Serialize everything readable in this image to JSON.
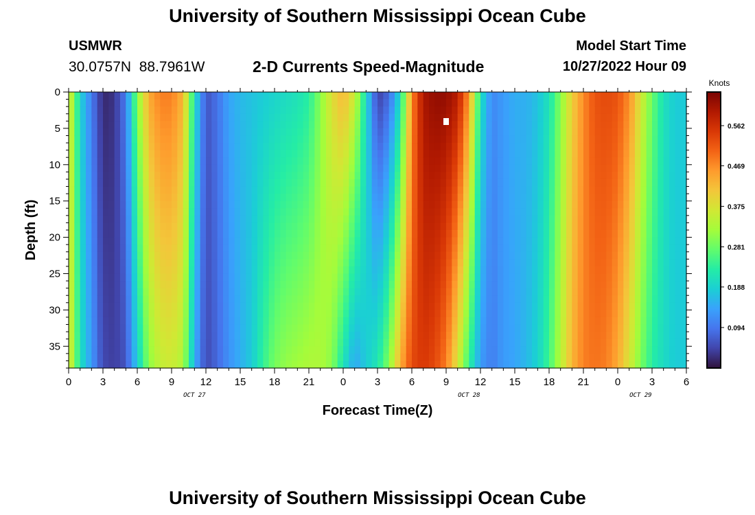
{
  "header": {
    "title": "University of Southern Mississippi Ocean Cube",
    "station": "USMWR",
    "coords": "30.0757N  88.7961W",
    "subtitle": "2-D Currents Speed-Magnitude",
    "model_label": "Model Start Time",
    "model_time": "10/27/2022 Hour 09"
  },
  "footer": {
    "title": "University of Southern Mississippi Ocean Cube"
  },
  "colors": {
    "palette": [
      "#30123b",
      "#4145ab",
      "#4675ed",
      "#39a2fc",
      "#1bcfd4",
      "#24eca6",
      "#61fc6c",
      "#a4fc3b",
      "#d1e834",
      "#f3c63a",
      "#fe9b2d",
      "#f36315",
      "#d93806",
      "#b11901",
      "#7a0402"
    ]
  },
  "chart_data": {
    "type": "heatmap",
    "title": "2-D Currents Speed-Magnitude",
    "xlabel": "Forecast Time(Z)",
    "ylabel": "Depth (ft)",
    "x_ticks": [
      "0",
      "3",
      "6",
      "9",
      "12",
      "15",
      "18",
      "21",
      "0",
      "3",
      "6",
      "9",
      "12",
      "15",
      "18",
      "21",
      "0",
      "3",
      "6"
    ],
    "y_ticks": [
      "0",
      "5",
      "10",
      "15",
      "20",
      "25",
      "30",
      "35"
    ],
    "ylim": [
      0,
      38
    ],
    "x_hours_range": [
      0,
      54
    ],
    "date_labels": [
      {
        "text": "OCT 27",
        "hour": 11
      },
      {
        "text": "OCT 28",
        "hour": 35
      },
      {
        "text": "OCT 29",
        "hour": 50
      }
    ],
    "colorbar": {
      "label": "Knots",
      "ticks": [
        "0.562",
        "0.469",
        "0.375",
        "0.281",
        "0.188",
        "0.094"
      ],
      "tick_values": [
        0.562,
        0.469,
        0.375,
        0.281,
        0.188,
        0.094
      ],
      "vmin": 0.0,
      "vmax": 0.64
    },
    "surface_speed_by_hour": [
      0.39,
      0.19,
      0.1,
      0.02,
      0.03,
      0.1,
      0.3,
      0.44,
      0.48,
      0.48,
      0.43,
      0.21,
      0.06,
      0.09,
      0.14,
      0.16,
      0.17,
      0.18,
      0.19,
      0.2,
      0.21,
      0.23,
      0.3,
      0.38,
      0.43,
      0.36,
      0.2,
      0.04,
      0.08,
      0.2,
      0.47,
      0.6,
      0.62,
      0.62,
      0.59,
      0.46,
      0.21,
      0.11,
      0.13,
      0.15,
      0.15,
      0.17,
      0.21,
      0.3,
      0.4,
      0.47,
      0.52,
      0.53,
      0.52,
      0.47,
      0.37,
      0.28,
      0.21,
      0.18,
      0.18
    ],
    "bottom_speed_by_hour": [
      0.39,
      0.21,
      0.13,
      0.05,
      0.04,
      0.06,
      0.18,
      0.3,
      0.35,
      0.36,
      0.33,
      0.15,
      0.05,
      0.08,
      0.12,
      0.15,
      0.18,
      0.24,
      0.29,
      0.31,
      0.32,
      0.33,
      0.33,
      0.3,
      0.21,
      0.14,
      0.18,
      0.22,
      0.3,
      0.44,
      0.53,
      0.55,
      0.53,
      0.48,
      0.37,
      0.24,
      0.13,
      0.1,
      0.13,
      0.14,
      0.16,
      0.19,
      0.25,
      0.34,
      0.43,
      0.48,
      0.49,
      0.48,
      0.44,
      0.37,
      0.29,
      0.23,
      0.2,
      0.18,
      0.18
    ]
  }
}
